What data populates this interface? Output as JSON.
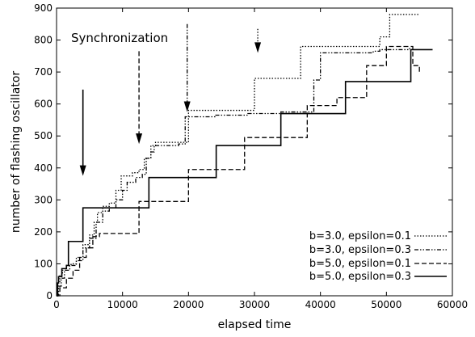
{
  "chart_data": {
    "type": "line",
    "title": "",
    "xlabel": "elapsed time",
    "ylabel": "number of flashing oscillator",
    "xlim": [
      0,
      60000
    ],
    "ylim": [
      0,
      900
    ],
    "xticks": [
      0,
      10000,
      20000,
      30000,
      40000,
      50000,
      60000
    ],
    "yticks": [
      0,
      100,
      200,
      300,
      400,
      500,
      600,
      700,
      800,
      900
    ],
    "grid": false,
    "legend_position": "bottom-right",
    "annotation_text": "Synchronization",
    "series": [
      {
        "name": "b=3.0, epsilon=0.1",
        "style": "dotted",
        "points": [
          [
            0,
            0
          ],
          [
            200,
            40
          ],
          [
            500,
            65
          ],
          [
            900,
            80
          ],
          [
            1500,
            95
          ],
          [
            2200,
            100
          ],
          [
            3000,
            120
          ],
          [
            4000,
            160
          ],
          [
            5000,
            190
          ],
          [
            5700,
            230
          ],
          [
            6200,
            260
          ],
          [
            7000,
            280
          ],
          [
            8000,
            290
          ],
          [
            9000,
            330
          ],
          [
            9800,
            375
          ],
          [
            11500,
            385
          ],
          [
            12500,
            395
          ],
          [
            13300,
            430
          ],
          [
            14300,
            470
          ],
          [
            15000,
            480
          ],
          [
            20000,
            580
          ],
          [
            25000,
            580
          ],
          [
            30000,
            680
          ],
          [
            35000,
            680
          ],
          [
            37000,
            780
          ],
          [
            48000,
            780
          ],
          [
            49000,
            810
          ],
          [
            50500,
            880
          ],
          [
            55000,
            880
          ]
        ]
      },
      {
        "name": "b=3.0, epsilon=0.3",
        "style": "dash-dot-dot",
        "points": [
          [
            0,
            0
          ],
          [
            300,
            30
          ],
          [
            700,
            55
          ],
          [
            1200,
            80
          ],
          [
            2000,
            95
          ],
          [
            3000,
            110
          ],
          [
            4000,
            150
          ],
          [
            5000,
            180
          ],
          [
            6000,
            230
          ],
          [
            7000,
            265
          ],
          [
            8000,
            275
          ],
          [
            9000,
            300
          ],
          [
            10000,
            330
          ],
          [
            10700,
            355
          ],
          [
            12000,
            370
          ],
          [
            13000,
            380
          ],
          [
            13600,
            430
          ],
          [
            14300,
            450
          ],
          [
            14800,
            470
          ],
          [
            18500,
            475
          ],
          [
            19500,
            560
          ],
          [
            24000,
            565
          ],
          [
            29000,
            570
          ],
          [
            34000,
            575
          ],
          [
            39000,
            675
          ],
          [
            40000,
            760
          ],
          [
            48000,
            765
          ],
          [
            49000,
            770
          ],
          [
            53500,
            775
          ]
        ]
      },
      {
        "name": "b=5.0, epsilon=0.1",
        "style": "dashed",
        "points": [
          [
            0,
            0
          ],
          [
            500,
            25
          ],
          [
            1500,
            55
          ],
          [
            2500,
            80
          ],
          [
            3500,
            120
          ],
          [
            4500,
            150
          ],
          [
            5500,
            185
          ],
          [
            6500,
            195
          ],
          [
            12000,
            195
          ],
          [
            12500,
            295
          ],
          [
            18000,
            295
          ],
          [
            20000,
            395
          ],
          [
            28000,
            395
          ],
          [
            28500,
            495
          ],
          [
            36000,
            495
          ],
          [
            38000,
            595
          ],
          [
            42000,
            595
          ],
          [
            42500,
            620
          ],
          [
            47000,
            720
          ],
          [
            50000,
            780
          ],
          [
            54000,
            720
          ],
          [
            55000,
            695
          ]
        ]
      },
      {
        "name": "b=5.0, epsilon=0.3",
        "style": "solid",
        "points": [
          [
            0,
            0
          ],
          [
            150,
            40
          ],
          [
            300,
            60
          ],
          [
            800,
            85
          ],
          [
            1500,
            95
          ],
          [
            1800,
            170
          ],
          [
            3500,
            170
          ],
          [
            4000,
            275
          ],
          [
            13500,
            275
          ],
          [
            14000,
            370
          ],
          [
            24000,
            370
          ],
          [
            24200,
            470
          ],
          [
            33800,
            470
          ],
          [
            34000,
            570
          ],
          [
            43500,
            570
          ],
          [
            43800,
            670
          ],
          [
            53500,
            670
          ],
          [
            53700,
            770
          ],
          [
            57000,
            770
          ]
        ]
      }
    ],
    "arrows": [
      {
        "x": 4000,
        "y_from": 645,
        "y_to": 375,
        "style": "solid"
      },
      {
        "x": 12500,
        "y_from": 765,
        "y_to": 475,
        "style": "dashed"
      },
      {
        "x": 19800,
        "y_from": 850,
        "y_to": 575,
        "style": "dash-dot-dot"
      },
      {
        "x": 30500,
        "y_from": 835,
        "y_to": 760,
        "style": "dotted"
      }
    ]
  }
}
